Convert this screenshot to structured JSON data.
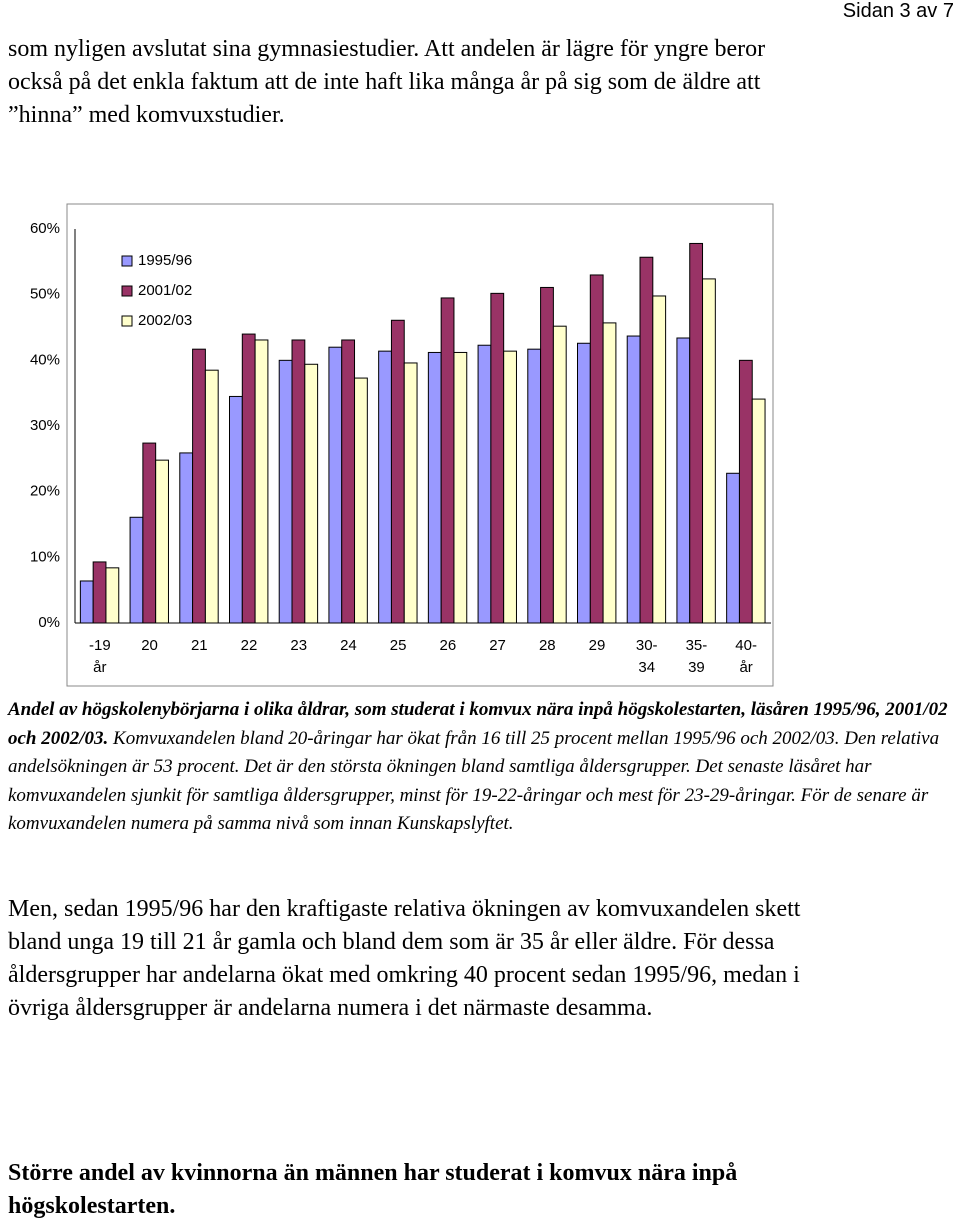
{
  "page_number": "Sidan 3 av 7",
  "intro_lines": [
    "som nyligen avslutat sina gymnasiestudier. Att andelen är lägre för yngre beror",
    "också på det enkla faktum att de inte haft lika många år på sig som de äldre att",
    "”hinna” med komvuxstudier."
  ],
  "chart_data": {
    "type": "bar",
    "categories": [
      [
        "-19",
        "år"
      ],
      [
        "20"
      ],
      [
        "21"
      ],
      [
        "22"
      ],
      [
        "23"
      ],
      [
        "24"
      ],
      [
        "25"
      ],
      [
        "26"
      ],
      [
        "27"
      ],
      [
        "28"
      ],
      [
        "29"
      ],
      [
        "30-",
        "34"
      ],
      [
        "35-",
        "39"
      ],
      [
        "40-",
        "år"
      ]
    ],
    "series": [
      {
        "name": "1995/96",
        "color": "#9999ff",
        "values": [
          6.4,
          16.1,
          25.9,
          34.5,
          40.0,
          42.0,
          41.4,
          41.2,
          42.3,
          41.7,
          42.6,
          43.7,
          43.4,
          22.8
        ]
      },
      {
        "name": "2001/02",
        "color": "#993366",
        "values": [
          9.3,
          27.4,
          41.7,
          44.0,
          43.1,
          43.1,
          46.1,
          49.5,
          50.2,
          51.1,
          53.0,
          55.7,
          57.8,
          40.0
        ]
      },
      {
        "name": "2002/03",
        "color": "#ffffcc",
        "values": [
          8.4,
          24.8,
          38.5,
          43.1,
          39.4,
          37.3,
          39.6,
          41.2,
          41.4,
          45.2,
          45.7,
          49.8,
          52.4,
          34.1
        ]
      }
    ],
    "ylim": [
      0,
      60
    ],
    "yticks": [
      {
        "value": 0,
        "label": "0%"
      },
      {
        "value": 10,
        "label": "10%"
      },
      {
        "value": 20,
        "label": "20%"
      },
      {
        "value": 30,
        "label": "30%"
      },
      {
        "value": 40,
        "label": "40%"
      },
      {
        "value": 50,
        "label": "50%"
      },
      {
        "value": 60,
        "label": "60%"
      }
    ],
    "grid": false,
    "legend": "upper left"
  },
  "caption": {
    "bold": "Andel av högskolenybörjarna i olika åldrar, som studerat i komvux nära inpå högskolestarten, läsåren 1995/96, 2001/02 och 2002/03.",
    "text": "Komvuxandelen bland 20-åringar har ökat från 16 till 25 procent mellan 1995/96 och 2002/03. Den relativa andelsökningen är 53 procent. Det är den största ökningen bland samtliga åldersgrupper. Det senaste läsåret har komvuxandelen sjunkit för samtliga åldersgrupper, minst för 19-22-åringar och mest för 23-29-åringar. För de senare är komvuxandelen numera på samma nivå som innan Kunskapslyftet."
  },
  "body_lines": [
    "Men, sedan 1995/96 har den kraftigaste relativa ökningen av komvuxandelen skett",
    "bland unga 19 till 21 år gamla och bland dem som är 35 år eller äldre. För dessa",
    "åldersgrupper har andelarna ökat med omkring 40 procent sedan 1995/96, medan i",
    "övriga åldersgrupper är andelarna numera i det närmaste desamma."
  ],
  "heading_lines": [
    "Större andel av kvinnorna än männen har studerat i komvux nära inpå",
    "högskolestarten."
  ]
}
